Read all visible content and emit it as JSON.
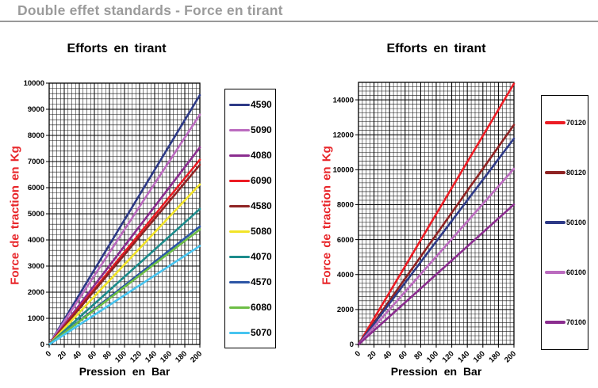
{
  "page": {
    "heading": "Double effet standards - Force en tirant",
    "heading_color": "#9b9b9b",
    "rule_color": "#999999",
    "background": "#ffffff"
  },
  "chart_data": [
    {
      "type": "line",
      "title": "Efforts en tirant",
      "xlabel": "Pression en Bar",
      "ylabel": "Force de traction en Kg",
      "ylabel_color": "#e8262a",
      "xlim": [
        0,
        200
      ],
      "ylim": [
        0,
        10000
      ],
      "x_major_step": 20,
      "x_minor_step": 5,
      "y_major_step": 1000,
      "y_minor_step": 200,
      "grid": true,
      "legend_position": "right-box",
      "x_tick_labels": [
        "0",
        "20",
        "40",
        "60",
        "80",
        "100",
        "120",
        "140",
        "160",
        "180",
        "200"
      ],
      "y_tick_labels": [
        "0",
        "1000",
        "2000",
        "3000",
        "4000",
        "5000",
        "6000",
        "7000",
        "8000",
        "9000",
        "10000"
      ],
      "series": [
        {
          "name": "4590",
          "color": "#2e3a87",
          "x": [
            0,
            200
          ],
          "y": [
            0,
            9542
          ]
        },
        {
          "name": "5090",
          "color": "#bb6bbf",
          "x": [
            0,
            200
          ],
          "y": [
            0,
            8796
          ]
        },
        {
          "name": "4080",
          "color": "#8b2d8f",
          "x": [
            0,
            200
          ],
          "y": [
            0,
            7540
          ]
        },
        {
          "name": "6090",
          "color": "#ec1c24",
          "x": [
            0,
            200
          ],
          "y": [
            0,
            7069
          ]
        },
        {
          "name": "4580",
          "color": "#8f2323",
          "x": [
            0,
            200
          ],
          "y": [
            0,
            6872
          ]
        },
        {
          "name": "5080",
          "color": "#f2e428",
          "x": [
            0,
            200
          ],
          "y": [
            0,
            6126
          ]
        },
        {
          "name": "4070",
          "color": "#1d8c8c",
          "x": [
            0,
            200
          ],
          "y": [
            0,
            5184
          ]
        },
        {
          "name": "4570",
          "color": "#2c55a5",
          "x": [
            0,
            200
          ],
          "y": [
            0,
            4516
          ]
        },
        {
          "name": "6080",
          "color": "#6dbe45",
          "x": [
            0,
            200
          ],
          "y": [
            0,
            4398
          ]
        },
        {
          "name": "5070",
          "color": "#47c4f0",
          "x": [
            0,
            200
          ],
          "y": [
            0,
            3770
          ]
        }
      ]
    },
    {
      "type": "line",
      "title": "Efforts en tirant",
      "xlabel": "Pression en Bar",
      "ylabel": "Force de traction en Kg",
      "ylabel_color": "#e8262a",
      "xlim": [
        0,
        200
      ],
      "ylim": [
        0,
        15000
      ],
      "x_major_step": 20,
      "x_minor_step": 5,
      "y_major_step": 2000,
      "y_minor_step": 250,
      "grid": true,
      "legend_position": "right-box",
      "x_tick_labels": [
        "0",
        "20",
        "40",
        "60",
        "80",
        "100",
        "120",
        "140",
        "160",
        "180",
        "200"
      ],
      "y_tick_labels": [
        "0",
        "2000",
        "4000",
        "6000",
        "8000",
        "10000",
        "12000",
        "14000"
      ],
      "series": [
        {
          "name": "70120",
          "color": "#ec1c24",
          "x": [
            0,
            200
          ],
          "y": [
            0,
            14923
          ]
        },
        {
          "name": "80120",
          "color": "#8f2323",
          "x": [
            0,
            200
          ],
          "y": [
            0,
            12566
          ]
        },
        {
          "name": "50100",
          "color": "#2e3a87",
          "x": [
            0,
            200
          ],
          "y": [
            0,
            11781
          ]
        },
        {
          "name": "60100",
          "color": "#bb6bbf",
          "x": [
            0,
            200
          ],
          "y": [
            0,
            10053
          ]
        },
        {
          "name": "70100",
          "color": "#8b2d8f",
          "x": [
            0,
            200
          ],
          "y": [
            0,
            8011
          ]
        }
      ]
    }
  ]
}
